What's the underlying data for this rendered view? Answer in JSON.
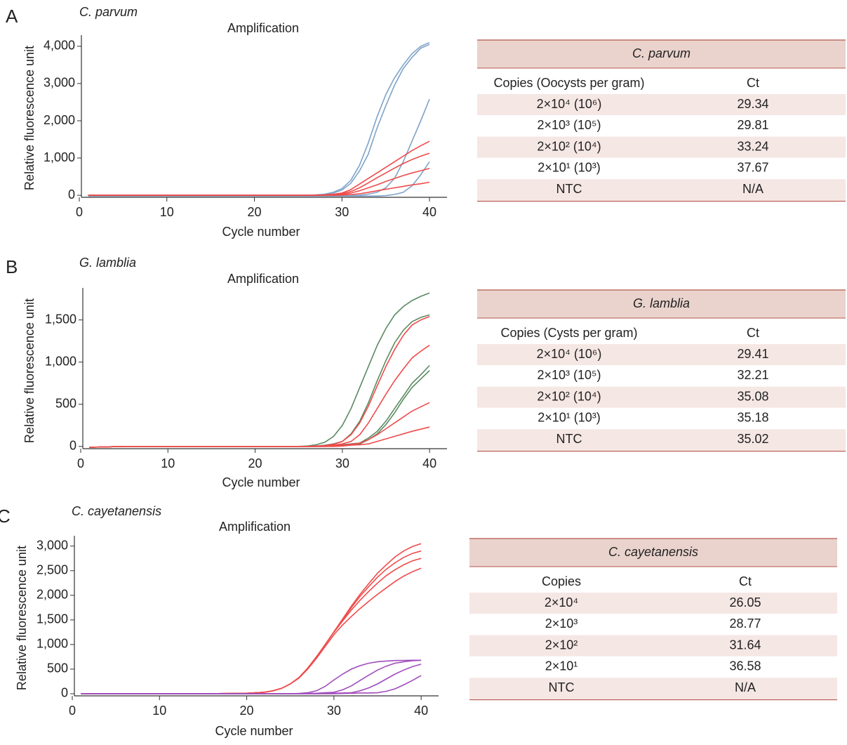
{
  "chart_data": [
    {
      "type": "line",
      "panel": "A",
      "subtitle": "C. parvum",
      "title": "Amplification",
      "xlabel": "Cycle number",
      "ylabel": "Relative fluorescence unit",
      "x": [
        1,
        5,
        10,
        15,
        20,
        22,
        23,
        24,
        25,
        26,
        27,
        28,
        29,
        30,
        31,
        32,
        33,
        34,
        35,
        36,
        37,
        38,
        39,
        40
      ],
      "xlim": [
        0,
        42
      ],
      "xticks": [
        0,
        10,
        20,
        30,
        40
      ],
      "ylim": [
        -130,
        4300
      ],
      "yticks": [
        0,
        {
          "value": 1000,
          "label": "1,000"
        },
        {
          "value": 2000,
          "label": "2,000"
        },
        {
          "value": 3000,
          "label": "3,000"
        },
        {
          "value": 4000,
          "label": "4,000"
        }
      ],
      "series": [
        {
          "color": "#7fa3c8",
          "values": [
            -20,
            -20,
            -20,
            -20,
            -20,
            -20,
            -20,
            -15,
            -10,
            -5,
            10,
            30,
            80,
            180,
            400,
            800,
            1400,
            2100,
            2700,
            3150,
            3500,
            3800,
            4000,
            4100
          ]
        },
        {
          "color": "#7fa3c8",
          "values": [
            -20,
            -20,
            -20,
            -20,
            -20,
            -20,
            -20,
            -15,
            -10,
            -5,
            5,
            20,
            60,
            140,
            320,
            650,
            1100,
            1800,
            2400,
            2950,
            3400,
            3700,
            3950,
            4050
          ]
        },
        {
          "color": "#7fa3c8",
          "values": [
            -20,
            -20,
            -20,
            -20,
            -20,
            -20,
            -20,
            -20,
            -20,
            -20,
            -20,
            -20,
            -20,
            -20,
            -10,
            0,
            30,
            80,
            200,
            450,
            900,
            1450,
            2000,
            2580
          ]
        },
        {
          "color": "#7fa3c8",
          "values": [
            -20,
            -20,
            -20,
            -20,
            -20,
            -20,
            -20,
            -20,
            -20,
            -20,
            -20,
            -20,
            -20,
            -20,
            -20,
            -20,
            -20,
            -20,
            -10,
            20,
            80,
            250,
            550,
            900
          ]
        },
        {
          "color": "#ef4b4b",
          "values": [
            0,
            0,
            0,
            0,
            0,
            0,
            0,
            0,
            0,
            0,
            5,
            10,
            30,
            60,
            150,
            300,
            450,
            600,
            750,
            900,
            1050,
            1200,
            1330,
            1450
          ]
        },
        {
          "color": "#ef4b4b",
          "values": [
            0,
            0,
            0,
            0,
            0,
            0,
            0,
            0,
            0,
            0,
            0,
            5,
            15,
            40,
            100,
            200,
            330,
            470,
            600,
            730,
            850,
            960,
            1050,
            1130
          ]
        },
        {
          "color": "#ef4b4b",
          "values": [
            0,
            0,
            0,
            0,
            0,
            0,
            0,
            0,
            0,
            0,
            0,
            0,
            5,
            20,
            60,
            120,
            200,
            280,
            370,
            450,
            530,
            600,
            660,
            720
          ]
        },
        {
          "color": "#ef4b4b",
          "values": [
            0,
            0,
            0,
            0,
            0,
            0,
            0,
            0,
            0,
            0,
            0,
            0,
            0,
            5,
            20,
            40,
            80,
            120,
            160,
            200,
            240,
            280,
            310,
            350
          ]
        }
      ]
    },
    {
      "type": "line",
      "panel": "B",
      "subtitle": "G. lamblia",
      "title": "Amplification",
      "xlabel": "Cycle number",
      "ylabel": "Relative fluorescence unit",
      "x": [
        1,
        5,
        10,
        15,
        20,
        22,
        23,
        24,
        25,
        26,
        27,
        28,
        29,
        30,
        31,
        32,
        33,
        34,
        35,
        36,
        37,
        38,
        39,
        40
      ],
      "xlim": [
        0,
        42
      ],
      "xticks": [
        0,
        10,
        20,
        30,
        40
      ],
      "ylim": [
        -60,
        1880
      ],
      "yticks": [
        0,
        500,
        {
          "value": 1000,
          "label": "1,000"
        },
        {
          "value": 1500,
          "label": "1,500"
        }
      ],
      "series": [
        {
          "color": "#5a8a62",
          "values": [
            -10,
            0,
            0,
            0,
            0,
            0,
            0,
            0,
            0,
            5,
            20,
            50,
            120,
            250,
            450,
            700,
            950,
            1200,
            1400,
            1560,
            1660,
            1730,
            1780,
            1820
          ]
        },
        {
          "color": "#5a8a62",
          "values": [
            -10,
            0,
            0,
            0,
            0,
            0,
            0,
            0,
            0,
            0,
            5,
            15,
            30,
            60,
            150,
            300,
            520,
            780,
            1020,
            1230,
            1380,
            1480,
            1530,
            1560
          ]
        },
        {
          "color": "#5a8a62",
          "values": [
            -10,
            0,
            0,
            0,
            0,
            0,
            0,
            0,
            0,
            0,
            0,
            5,
            10,
            20,
            30,
            40,
            100,
            180,
            300,
            450,
            600,
            750,
            850,
            960
          ]
        },
        {
          "color": "#5a8a62",
          "values": [
            -10,
            0,
            0,
            0,
            0,
            0,
            0,
            0,
            0,
            0,
            0,
            0,
            5,
            15,
            20,
            30,
            80,
            150,
            260,
            400,
            560,
            700,
            800,
            900
          ]
        },
        {
          "color": "#ef4b4b",
          "values": [
            -10,
            0,
            0,
            0,
            0,
            0,
            0,
            0,
            0,
            0,
            5,
            10,
            25,
            60,
            140,
            280,
            480,
            720,
            950,
            1150,
            1320,
            1440,
            1500,
            1540
          ]
        },
        {
          "color": "#ef4b4b",
          "values": [
            -10,
            0,
            0,
            0,
            0,
            0,
            0,
            0,
            0,
            0,
            0,
            5,
            15,
            30,
            60,
            140,
            280,
            450,
            620,
            780,
            920,
            1050,
            1130,
            1200
          ]
        },
        {
          "color": "#ef4b4b",
          "values": [
            -10,
            0,
            0,
            0,
            0,
            0,
            0,
            0,
            0,
            0,
            0,
            0,
            5,
            15,
            25,
            40,
            80,
            140,
            210,
            280,
            350,
            420,
            470,
            520
          ]
        },
        {
          "color": "#ef4b4b",
          "values": [
            -10,
            0,
            0,
            0,
            0,
            0,
            0,
            0,
            0,
            0,
            0,
            0,
            0,
            5,
            15,
            20,
            30,
            60,
            90,
            120,
            150,
            180,
            205,
            230
          ]
        }
      ]
    },
    {
      "type": "line",
      "panel": "C",
      "subtitle": "C. cayetanensis",
      "title": "Amplification",
      "xlabel": "Cycle number",
      "ylabel": "Relative fluorescence unit",
      "x": [
        1,
        5,
        10,
        15,
        20,
        22,
        23,
        24,
        25,
        26,
        27,
        28,
        29,
        30,
        31,
        32,
        33,
        34,
        35,
        36,
        37,
        38,
        39,
        40
      ],
      "xlim": [
        0,
        42
      ],
      "xticks": [
        0,
        10,
        20,
        30,
        40
      ],
      "ylim": [
        -100,
        3210
      ],
      "yticks": [
        0,
        500,
        {
          "value": 1000,
          "label": "1,000"
        },
        {
          "value": 1500,
          "label": "1,500"
        },
        {
          "value": 2000,
          "label": "2,000"
        },
        {
          "value": 2500,
          "label": "2,500"
        },
        {
          "value": 3000,
          "label": "3,000"
        }
      ],
      "series": [
        {
          "color": "#ef4b4b",
          "values": [
            0,
            0,
            0,
            0,
            10,
            30,
            60,
            110,
            200,
            330,
            520,
            750,
            1000,
            1260,
            1520,
            1780,
            2020,
            2240,
            2450,
            2620,
            2780,
            2900,
            2990,
            3050
          ]
        },
        {
          "color": "#ef4b4b",
          "values": [
            0,
            0,
            0,
            0,
            10,
            30,
            60,
            110,
            200,
            330,
            520,
            750,
            1000,
            1260,
            1500,
            1750,
            1980,
            2180,
            2370,
            2530,
            2660,
            2770,
            2850,
            2900
          ]
        },
        {
          "color": "#ef4b4b",
          "values": [
            0,
            0,
            0,
            0,
            10,
            30,
            60,
            110,
            200,
            330,
            520,
            750,
            1000,
            1250,
            1480,
            1700,
            1900,
            2080,
            2250,
            2400,
            2520,
            2620,
            2700,
            2750
          ]
        },
        {
          "color": "#ef4b4b",
          "values": [
            0,
            0,
            0,
            0,
            10,
            30,
            60,
            110,
            200,
            320,
            500,
            720,
            960,
            1200,
            1400,
            1570,
            1730,
            1880,
            2020,
            2150,
            2280,
            2390,
            2480,
            2550
          ]
        },
        {
          "color": "#a04cbc",
          "values": [
            0,
            0,
            0,
            0,
            0,
            0,
            0,
            0,
            0,
            5,
            20,
            60,
            150,
            280,
            400,
            500,
            570,
            620,
            650,
            665,
            675,
            678,
            680,
            680
          ]
        },
        {
          "color": "#a04cbc",
          "values": [
            0,
            0,
            0,
            0,
            0,
            0,
            0,
            0,
            0,
            0,
            5,
            10,
            20,
            30,
            80,
            160,
            270,
            380,
            480,
            560,
            620,
            650,
            670,
            680
          ]
        },
        {
          "color": "#a04cbc",
          "values": [
            0,
            0,
            0,
            0,
            0,
            0,
            0,
            0,
            0,
            0,
            0,
            0,
            5,
            10,
            15,
            20,
            60,
            120,
            200,
            300,
            400,
            480,
            550,
            600
          ]
        },
        {
          "color": "#a04cbc",
          "values": [
            0,
            0,
            0,
            0,
            0,
            0,
            0,
            0,
            0,
            0,
            0,
            0,
            0,
            0,
            5,
            10,
            15,
            15,
            20,
            50,
            100,
            180,
            270,
            370
          ]
        }
      ]
    }
  ],
  "tables": [
    {
      "title": "C. parvum",
      "header": [
        "Copies (Oocysts per gram)",
        "Ct"
      ],
      "rows": [
        [
          "2×10⁴ (10⁶)",
          "29.34"
        ],
        [
          "2×10³ (10⁵)",
          "29.81"
        ],
        [
          "2×10² (10⁴)",
          "33.24"
        ],
        [
          "2×10¹ (10³)",
          "37.67"
        ],
        [
          "NTC",
          "N/A"
        ]
      ]
    },
    {
      "title": "G. lamblia",
      "header": [
        "Copies (Cysts per gram)",
        "Ct"
      ],
      "rows": [
        [
          "2×10⁴ (10⁶)",
          "29.41"
        ],
        [
          "2×10³ (10⁵)",
          "32.21"
        ],
        [
          "2×10² (10⁴)",
          "35.08"
        ],
        [
          "2×10¹ (10³)",
          "35.18"
        ],
        [
          "NTC",
          "35.02"
        ]
      ]
    },
    {
      "title": "C. cayetanensis",
      "header": [
        "Copies",
        "Ct"
      ],
      "rows": [
        [
          "2×10⁴",
          "26.05"
        ],
        [
          "2×10³",
          "28.77"
        ],
        [
          "2×10²",
          "31.64"
        ],
        [
          "2×10¹",
          "36.58"
        ],
        [
          "NTC",
          "N/A"
        ]
      ]
    }
  ]
}
